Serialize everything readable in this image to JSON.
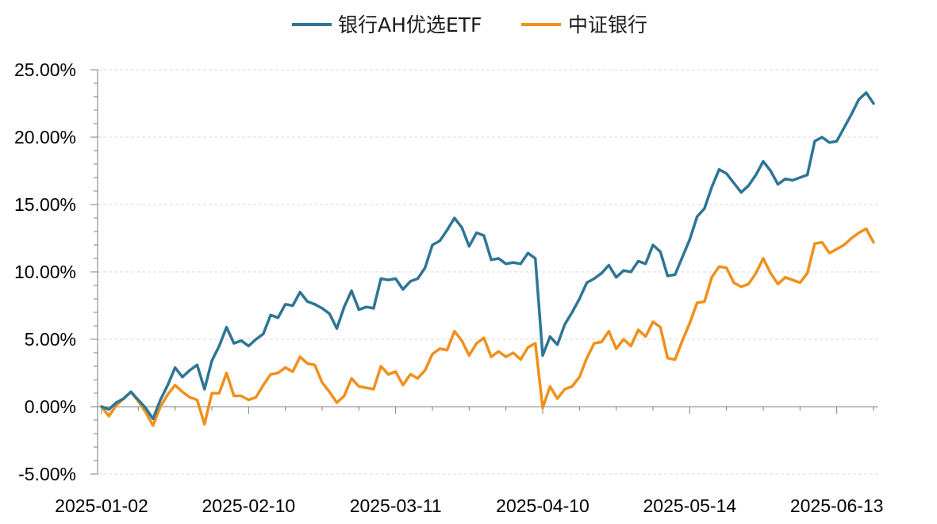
{
  "chart_data": {
    "type": "line",
    "title": "",
    "xlabel": "",
    "ylabel": "",
    "ylim": [
      -0.05,
      0.25
    ],
    "y_ticks": [
      "25.00%",
      "20.00%",
      "15.00%",
      "10.00%",
      "5.00%",
      "0.00%",
      "-5.00%"
    ],
    "y_tick_values": [
      0.25,
      0.2,
      0.15,
      0.1,
      0.05,
      0.0,
      -0.05
    ],
    "x_tick_labels": [
      "2025-01-02",
      "2025-02-10",
      "2025-03-11",
      "2025-04-10",
      "2025-05-14",
      "2025-06-13"
    ],
    "x_tick_index": [
      0,
      20,
      40,
      60,
      80,
      100
    ],
    "grid": "horizontal-dashed",
    "legend_position": "top-center",
    "series": [
      {
        "name": "银行AH优选ETF",
        "color": "#2E7596",
        "values": [
          0.0,
          -0.002,
          0.003,
          0.006,
          0.011,
          0.005,
          -0.001,
          -0.009,
          0.005,
          0.016,
          0.029,
          0.022,
          0.027,
          0.031,
          0.013,
          0.034,
          0.045,
          0.059,
          0.047,
          0.049,
          0.045,
          0.05,
          0.054,
          0.068,
          0.066,
          0.076,
          0.075,
          0.085,
          0.078,
          0.076,
          0.073,
          0.069,
          0.058,
          0.074,
          0.086,
          0.072,
          0.074,
          0.073,
          0.095,
          0.094,
          0.095,
          0.087,
          0.093,
          0.095,
          0.103,
          0.12,
          0.123,
          0.131,
          0.14,
          0.133,
          0.119,
          0.129,
          0.127,
          0.109,
          0.11,
          0.106,
          0.107,
          0.106,
          0.114,
          0.11,
          0.038,
          0.052,
          0.046,
          0.061,
          0.07,
          0.08,
          0.092,
          0.095,
          0.099,
          0.105,
          0.096,
          0.101,
          0.1,
          0.108,
          0.106,
          0.12,
          0.115,
          0.097,
          0.098,
          0.111,
          0.124,
          0.141,
          0.147,
          0.163,
          0.176,
          0.173,
          0.166,
          0.159,
          0.164,
          0.172,
          0.182,
          0.175,
          0.165,
          0.169,
          0.168,
          0.17,
          0.172,
          0.197,
          0.2,
          0.196,
          0.197,
          0.207,
          0.217,
          0.228,
          0.233,
          0.225
        ]
      },
      {
        "name": "中证银行",
        "color": "#F0901C",
        "values": [
          0.0,
          -0.007,
          0.001,
          0.006,
          0.011,
          0.004,
          -0.004,
          -0.014,
          0.0,
          0.009,
          0.016,
          0.011,
          0.007,
          0.005,
          -0.013,
          0.01,
          0.01,
          0.025,
          0.008,
          0.008,
          0.005,
          0.007,
          0.016,
          0.024,
          0.025,
          0.029,
          0.026,
          0.037,
          0.032,
          0.031,
          0.018,
          0.011,
          0.003,
          0.008,
          0.021,
          0.015,
          0.014,
          0.013,
          0.03,
          0.024,
          0.026,
          0.016,
          0.024,
          0.021,
          0.027,
          0.039,
          0.043,
          0.042,
          0.056,
          0.049,
          0.038,
          0.047,
          0.051,
          0.037,
          0.041,
          0.037,
          0.04,
          0.035,
          0.044,
          0.047,
          -0.001,
          0.015,
          0.006,
          0.013,
          0.015,
          0.022,
          0.036,
          0.047,
          0.048,
          0.056,
          0.043,
          0.05,
          0.045,
          0.057,
          0.052,
          0.063,
          0.059,
          0.036,
          0.035,
          0.049,
          0.062,
          0.077,
          0.078,
          0.096,
          0.104,
          0.103,
          0.092,
          0.089,
          0.091,
          0.099,
          0.11,
          0.099,
          0.091,
          0.096,
          0.094,
          0.092,
          0.099,
          0.121,
          0.122,
          0.114,
          0.117,
          0.12,
          0.125,
          0.129,
          0.132,
          0.122
        ]
      }
    ]
  }
}
